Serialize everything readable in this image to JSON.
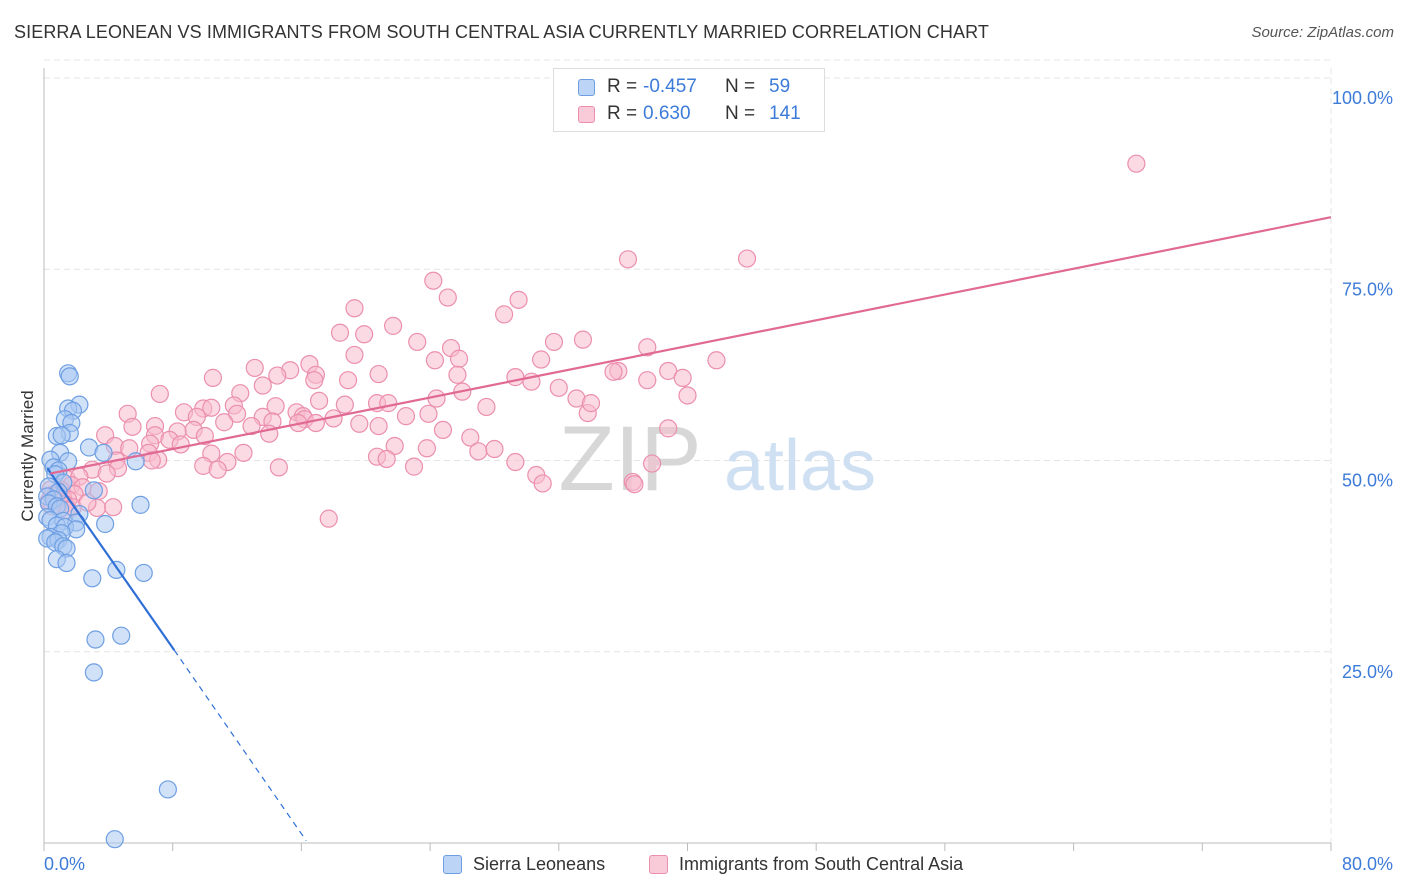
{
  "title": "SIERRA LEONEAN VS IMMIGRANTS FROM SOUTH CENTRAL ASIA CURRENTLY MARRIED CORRELATION CHART",
  "source": "Source: ZipAtlas.com",
  "watermark": {
    "zip": "ZIP",
    "atlas": "atlas"
  },
  "legend_top": {
    "series1": {
      "r_label": "R =",
      "r_value": "-0.457",
      "n_label": "N =",
      "n_value": "59"
    },
    "series2": {
      "r_label": "R =",
      "r_value": "0.630",
      "n_label": "N =",
      "n_value": "141"
    }
  },
  "legend_bottom": {
    "series1": "Sierra Leoneans",
    "series2": "Immigrants from South Central Asia"
  },
  "colors": {
    "blue_fill": "#a9c8f2",
    "blue_stroke": "#6f9fe3",
    "blue_line": "#2f6fd6",
    "pink_fill": "#f7bccd",
    "pink_stroke": "#eb8fae",
    "pink_line": "#e06a93",
    "axis_text": "#3d7bd9",
    "grid": "#e4e4e4"
  },
  "chart_data": {
    "type": "scatter",
    "title": "SIERRA LEONEAN VS IMMIGRANTS FROM SOUTH CENTRAL ASIA CURRENTLY MARRIED CORRELATION CHART",
    "xlabel": "",
    "ylabel": "Currently Married",
    "xlim": [
      0,
      80
    ],
    "ylim": [
      0,
      100
    ],
    "x_tick_labels": [
      "0.0%",
      "80.0%"
    ],
    "y_ticks": [
      25,
      50,
      75,
      100
    ],
    "y_tick_labels": [
      "25.0%",
      "50.0%",
      "75.0%",
      "100.0%"
    ],
    "grid": true,
    "series": [
      {
        "name": "Sierra Leoneans",
        "color": "blue",
        "r": -0.457,
        "n": 59,
        "trend": {
          "solid": [
            [
              0.2,
              49.0
            ],
            [
              8.1,
              25.2
            ]
          ],
          "dashed": [
            [
              8.1,
              25.2
            ],
            [
              16.3,
              0.3
            ]
          ]
        },
        "points": [
          [
            1.5,
            61.4
          ],
          [
            1.6,
            61.0
          ],
          [
            2.2,
            57.3
          ],
          [
            1.5,
            56.8
          ],
          [
            1.8,
            56.5
          ],
          [
            1.3,
            55.4
          ],
          [
            1.7,
            54.9
          ],
          [
            1.6,
            53.6
          ],
          [
            0.8,
            53.2
          ],
          [
            1.1,
            53.3
          ],
          [
            2.8,
            51.7
          ],
          [
            1.0,
            51.0
          ],
          [
            3.7,
            51.0
          ],
          [
            0.4,
            50.1
          ],
          [
            1.5,
            49.9
          ],
          [
            0.6,
            49.1
          ],
          [
            0.9,
            48.7
          ],
          [
            5.7,
            49.9
          ],
          [
            0.7,
            48.2
          ],
          [
            1.2,
            47.1
          ],
          [
            0.3,
            46.6
          ],
          [
            3.1,
            46.1
          ],
          [
            0.9,
            45.9
          ],
          [
            0.2,
            45.3
          ],
          [
            0.6,
            44.9
          ],
          [
            0.3,
            44.4
          ],
          [
            0.8,
            44.0
          ],
          [
            1.0,
            43.7
          ],
          [
            2.2,
            43.0
          ],
          [
            0.2,
            42.6
          ],
          [
            0.4,
            42.2
          ],
          [
            1.2,
            42.1
          ],
          [
            2.0,
            41.9
          ],
          [
            0.8,
            41.5
          ],
          [
            1.3,
            41.3
          ],
          [
            3.8,
            41.7
          ],
          [
            2.0,
            41.0
          ],
          [
            1.1,
            40.5
          ],
          [
            0.4,
            40.0
          ],
          [
            0.2,
            39.8
          ],
          [
            0.9,
            39.6
          ],
          [
            0.7,
            39.3
          ],
          [
            1.2,
            38.8
          ],
          [
            1.4,
            38.5
          ],
          [
            0.8,
            37.1
          ],
          [
            1.4,
            36.6
          ],
          [
            6.0,
            44.2
          ],
          [
            4.5,
            35.7
          ],
          [
            6.2,
            35.3
          ],
          [
            3.0,
            34.6
          ],
          [
            4.8,
            27.1
          ],
          [
            3.2,
            26.6
          ],
          [
            3.1,
            22.3
          ],
          [
            7.7,
            7.0
          ],
          [
            4.4,
            0.5
          ]
        ]
      },
      {
        "name": "Immigrants from South Central Asia",
        "color": "pink",
        "r": 0.63,
        "n": 141,
        "trend": {
          "solid": [
            [
              0.4,
              48.3
            ],
            [
              80,
              81.8
            ]
          ]
        },
        "points": [
          [
            67.9,
            88.8
          ],
          [
            36.3,
            76.3
          ],
          [
            43.7,
            76.4
          ],
          [
            24.2,
            73.5
          ],
          [
            25.1,
            71.3
          ],
          [
            29.5,
            71.0
          ],
          [
            19.3,
            69.9
          ],
          [
            28.6,
            69.1
          ],
          [
            21.7,
            67.6
          ],
          [
            18.4,
            66.7
          ],
          [
            19.9,
            66.5
          ],
          [
            33.5,
            65.8
          ],
          [
            31.7,
            65.5
          ],
          [
            23.2,
            65.5
          ],
          [
            37.5,
            64.8
          ],
          [
            25.3,
            64.7
          ],
          [
            19.3,
            63.8
          ],
          [
            25.8,
            63.3
          ],
          [
            24.3,
            63.1
          ],
          [
            30.9,
            63.2
          ],
          [
            41.8,
            63.1
          ],
          [
            16.5,
            62.6
          ],
          [
            13.1,
            62.1
          ],
          [
            15.3,
            61.8
          ],
          [
            35.7,
            61.7
          ],
          [
            14.5,
            61.1
          ],
          [
            35.4,
            61.6
          ],
          [
            38.8,
            61.7
          ],
          [
            20.8,
            61.3
          ],
          [
            16.9,
            61.2
          ],
          [
            25.7,
            61.2
          ],
          [
            29.3,
            60.9
          ],
          [
            16.8,
            60.5
          ],
          [
            18.9,
            60.5
          ],
          [
            10.5,
            60.8
          ],
          [
            39.7,
            60.8
          ],
          [
            37.5,
            60.5
          ],
          [
            13.6,
            59.8
          ],
          [
            30.3,
            60.3
          ],
          [
            12.2,
            58.8
          ],
          [
            7.2,
            58.7
          ],
          [
            24.4,
            58.1
          ],
          [
            33.1,
            58.1
          ],
          [
            17.1,
            57.8
          ],
          [
            20.7,
            57.5
          ],
          [
            21.4,
            57.5
          ],
          [
            11.8,
            57.2
          ],
          [
            14.4,
            57.1
          ],
          [
            9.9,
            56.8
          ],
          [
            18.7,
            57.3
          ],
          [
            8.7,
            56.3
          ],
          [
            10.4,
            56.9
          ],
          [
            12.0,
            56.1
          ],
          [
            15.7,
            56.3
          ],
          [
            5.2,
            56.1
          ],
          [
            16.1,
            55.8
          ],
          [
            23.9,
            56.1
          ],
          [
            33.8,
            56.2
          ],
          [
            13.6,
            55.7
          ],
          [
            9.5,
            55.7
          ],
          [
            16.2,
            55.4
          ],
          [
            11.2,
            55.0
          ],
          [
            14.2,
            55.1
          ],
          [
            16.9,
            54.9
          ],
          [
            19.6,
            54.8
          ],
          [
            15.8,
            54.9
          ],
          [
            6.9,
            54.5
          ],
          [
            5.5,
            54.4
          ],
          [
            12.9,
            54.5
          ],
          [
            20.8,
            54.5
          ],
          [
            9.3,
            54.0
          ],
          [
            24.8,
            54.0
          ],
          [
            38.8,
            54.2
          ],
          [
            8.3,
            53.8
          ],
          [
            3.8,
            53.3
          ],
          [
            6.9,
            53.3
          ],
          [
            10.0,
            53.2
          ],
          [
            7.8,
            52.7
          ],
          [
            26.5,
            53.0
          ],
          [
            6.6,
            52.2
          ],
          [
            8.5,
            52.1
          ],
          [
            4.4,
            51.9
          ],
          [
            23.8,
            51.6
          ],
          [
            21.8,
            51.9
          ],
          [
            5.3,
            51.6
          ],
          [
            6.5,
            51.0
          ],
          [
            27.0,
            51.2
          ],
          [
            10.4,
            50.9
          ],
          [
            20.7,
            50.5
          ],
          [
            21.3,
            50.2
          ],
          [
            7.1,
            50.1
          ],
          [
            4.5,
            50.0
          ],
          [
            11.4,
            49.8
          ],
          [
            29.3,
            49.8
          ],
          [
            37.8,
            49.6
          ],
          [
            9.9,
            49.3
          ],
          [
            23.0,
            49.2
          ],
          [
            14.6,
            49.1
          ],
          [
            3.0,
            48.8
          ],
          [
            4.6,
            49.0
          ],
          [
            10.8,
            48.8
          ],
          [
            30.6,
            48.1
          ],
          [
            3.9,
            48.3
          ],
          [
            1.4,
            47.6
          ],
          [
            2.2,
            47.9
          ],
          [
            31.0,
            47.0
          ],
          [
            36.6,
            47.2
          ],
          [
            1.7,
            46.8
          ],
          [
            36.7,
            46.9
          ],
          [
            2.4,
            46.5
          ],
          [
            0.4,
            46.2
          ],
          [
            1.1,
            46.1
          ],
          [
            0.9,
            45.9
          ],
          [
            1.9,
            45.6
          ],
          [
            0.5,
            45.5
          ],
          [
            3.4,
            46.0
          ],
          [
            0.7,
            45.3
          ],
          [
            1.2,
            45.0
          ],
          [
            1.5,
            44.9
          ],
          [
            0.8,
            44.6
          ],
          [
            1.3,
            44.3
          ],
          [
            0.5,
            44.0
          ],
          [
            1.8,
            43.9
          ],
          [
            3.3,
            43.8
          ],
          [
            4.3,
            43.9
          ],
          [
            1.5,
            43.5
          ],
          [
            17.7,
            42.4
          ],
          [
            0.3,
            44.7
          ],
          [
            2.7,
            44.5
          ],
          [
            6.7,
            50.0
          ],
          [
            12.4,
            51.0
          ],
          [
            14.0,
            53.5
          ],
          [
            18.0,
            55.5
          ],
          [
            22.5,
            55.8
          ],
          [
            27.5,
            57.0
          ],
          [
            28.0,
            51.5
          ],
          [
            32.0,
            59.5
          ],
          [
            34.0,
            57.5
          ],
          [
            40.0,
            58.5
          ],
          [
            26.0,
            59.0
          ]
        ]
      }
    ]
  }
}
